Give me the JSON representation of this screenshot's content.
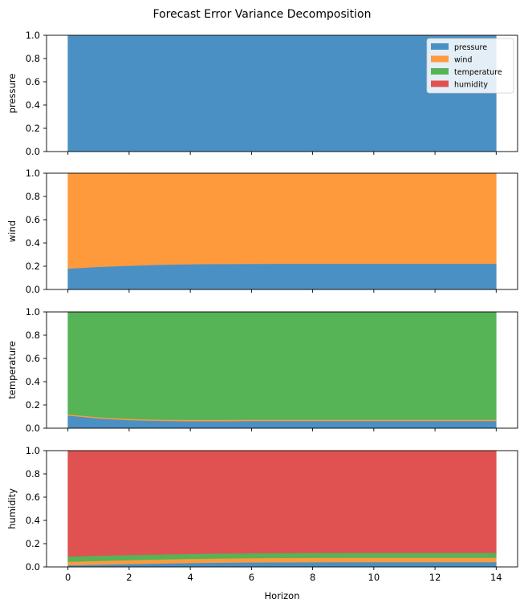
{
  "chart_data": {
    "type": "area",
    "title": "Forecast Error Variance Decomposition",
    "xlabel": "Horizon",
    "xlim": [
      -0.7,
      14.7
    ],
    "xticks": [
      0,
      2,
      4,
      6,
      8,
      10,
      12,
      14
    ],
    "ylim": [
      0,
      1
    ],
    "yticks": [
      "0.0",
      "0.2",
      "0.4",
      "0.6",
      "0.8",
      "1.0"
    ],
    "horizons": [
      0,
      1,
      2,
      3,
      4,
      5,
      6,
      7,
      8,
      9,
      10,
      11,
      12,
      13,
      14
    ],
    "legend": {
      "position": "top-right",
      "entries": [
        {
          "name": "pressure",
          "color": "#4a90c4"
        },
        {
          "name": "wind",
          "color": "#ff9a3c"
        },
        {
          "name": "temperature",
          "color": "#56b356"
        },
        {
          "name": "humidity",
          "color": "#e05252"
        }
      ]
    },
    "panels": [
      {
        "ylabel": "pressure",
        "series": [
          {
            "name": "pressure",
            "values": [
              1,
              1,
              1,
              1,
              1,
              1,
              1,
              1,
              1,
              1,
              1,
              1,
              1,
              1,
              1
            ]
          },
          {
            "name": "wind",
            "values": [
              0,
              0,
              0,
              0,
              0,
              0,
              0,
              0,
              0,
              0,
              0,
              0,
              0,
              0,
              0
            ]
          },
          {
            "name": "temperature",
            "values": [
              0,
              0,
              0,
              0,
              0,
              0,
              0,
              0,
              0,
              0,
              0,
              0,
              0,
              0,
              0
            ]
          },
          {
            "name": "humidity",
            "values": [
              0,
              0,
              0,
              0,
              0,
              0,
              0,
              0,
              0,
              0,
              0,
              0,
              0,
              0,
              0
            ]
          }
        ]
      },
      {
        "ylabel": "wind",
        "series": [
          {
            "name": "pressure",
            "values": [
              0.18,
              0.195,
              0.205,
              0.213,
              0.218,
              0.22,
              0.221,
              0.222,
              0.222,
              0.222,
              0.222,
              0.222,
              0.222,
              0.222,
              0.222
            ]
          },
          {
            "name": "wind",
            "values": [
              0.82,
              0.805,
              0.794,
              0.786,
              0.781,
              0.779,
              0.778,
              0.777,
              0.777,
              0.777,
              0.777,
              0.777,
              0.777,
              0.777,
              0.777
            ]
          },
          {
            "name": "temperature",
            "values": [
              0,
              0,
              0.001,
              0.001,
              0.001,
              0.001,
              0.001,
              0.001,
              0.001,
              0.001,
              0.001,
              0.001,
              0.001,
              0.001,
              0.001
            ]
          },
          {
            "name": "humidity",
            "values": [
              0,
              0,
              0,
              0,
              0,
              0,
              0,
              0,
              0,
              0,
              0,
              0,
              0,
              0,
              0
            ]
          }
        ]
      },
      {
        "ylabel": "temperature",
        "series": [
          {
            "name": "pressure",
            "values": [
              0.11,
              0.085,
              0.07,
              0.063,
              0.061,
              0.061,
              0.062,
              0.062,
              0.062,
              0.062,
              0.062,
              0.062,
              0.062,
              0.062,
              0.062
            ]
          },
          {
            "name": "wind",
            "values": [
              0.01,
              0.01,
              0.011,
              0.011,
              0.012,
              0.012,
              0.012,
              0.012,
              0.012,
              0.012,
              0.012,
              0.012,
              0.012,
              0.012,
              0.012
            ]
          },
          {
            "name": "temperature",
            "values": [
              0.88,
              0.905,
              0.919,
              0.926,
              0.927,
              0.927,
              0.926,
              0.926,
              0.926,
              0.926,
              0.926,
              0.926,
              0.926,
              0.926,
              0.926
            ]
          },
          {
            "name": "humidity",
            "values": [
              0,
              0,
              0,
              0,
              0,
              0,
              0,
              0,
              0,
              0,
              0,
              0,
              0,
              0,
              0
            ]
          }
        ]
      },
      {
        "ylabel": "humidity",
        "series": [
          {
            "name": "pressure",
            "values": [
              0.015,
              0.02,
              0.025,
              0.03,
              0.034,
              0.037,
              0.039,
              0.04,
              0.041,
              0.042,
              0.042,
              0.042,
              0.042,
              0.042,
              0.042
            ]
          },
          {
            "name": "wind",
            "values": [
              0.03,
              0.032,
              0.034,
              0.035,
              0.036,
              0.037,
              0.037,
              0.038,
              0.038,
              0.038,
              0.038,
              0.038,
              0.038,
              0.038,
              0.038
            ]
          },
          {
            "name": "temperature",
            "values": [
              0.045,
              0.045,
              0.044,
              0.043,
              0.042,
              0.042,
              0.042,
              0.042,
              0.042,
              0.042,
              0.042,
              0.042,
              0.042,
              0.042,
              0.042
            ]
          },
          {
            "name": "humidity",
            "values": [
              0.91,
              0.903,
              0.897,
              0.892,
              0.888,
              0.884,
              0.882,
              0.88,
              0.879,
              0.878,
              0.878,
              0.878,
              0.878,
              0.878,
              0.878
            ]
          }
        ]
      }
    ]
  }
}
